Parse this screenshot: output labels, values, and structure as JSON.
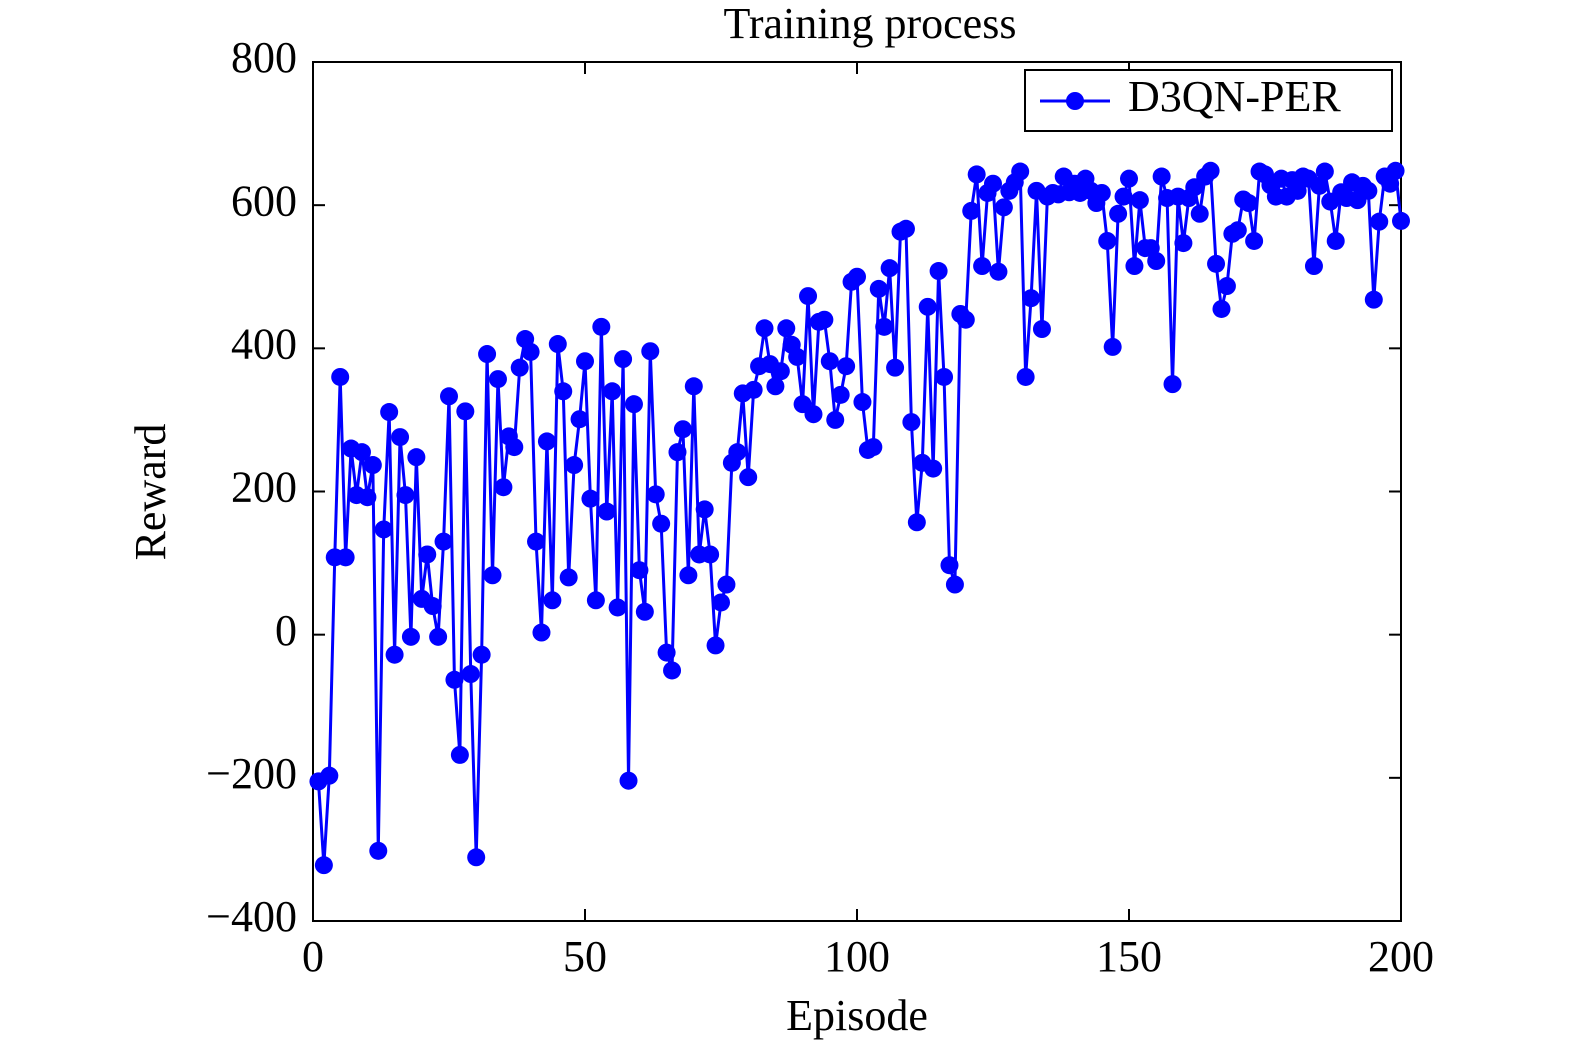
{
  "chart_data": {
    "type": "line",
    "title": "Training process",
    "xlabel": "Episode",
    "ylabel": "Reward",
    "x": [
      1,
      2,
      3,
      4,
      5,
      6,
      7,
      8,
      9,
      10,
      11,
      12,
      13,
      14,
      15,
      16,
      17,
      18,
      19,
      20,
      21,
      22,
      23,
      24,
      25,
      26,
      27,
      28,
      29,
      30,
      31,
      32,
      33,
      34,
      35,
      36,
      37,
      38,
      39,
      40,
      41,
      42,
      43,
      44,
      45,
      46,
      47,
      48,
      49,
      50,
      51,
      52,
      53,
      54,
      55,
      56,
      57,
      58,
      59,
      60,
      61,
      62,
      63,
      64,
      65,
      66,
      67,
      68,
      69,
      70,
      71,
      72,
      73,
      74,
      75,
      76,
      77,
      78,
      79,
      80,
      81,
      82,
      83,
      84,
      85,
      86,
      87,
      88,
      89,
      90,
      91,
      92,
      93,
      94,
      95,
      96,
      97,
      98,
      99,
      100,
      101,
      102,
      103,
      104,
      105,
      106,
      107,
      108,
      109,
      110,
      111,
      112,
      113,
      114,
      115,
      116,
      117,
      118,
      119,
      120,
      121,
      122,
      123,
      124,
      125,
      126,
      127,
      128,
      129,
      130,
      131,
      132,
      133,
      134,
      135,
      136,
      137,
      138,
      139,
      140,
      141,
      142,
      143,
      144,
      145,
      146,
      147,
      148,
      149,
      150,
      151,
      152,
      153,
      154,
      155,
      156,
      157,
      158,
      159,
      160,
      161,
      162,
      163,
      164,
      165,
      166,
      167,
      168,
      169,
      170,
      171,
      172,
      173,
      174,
      175,
      176,
      177,
      178,
      179,
      180,
      181,
      182,
      183,
      184,
      185,
      186,
      187,
      188,
      189,
      190,
      191,
      192,
      193,
      194,
      195,
      196,
      197,
      198,
      199,
      200
    ],
    "series": [
      {
        "name": "D3QN-PER",
        "color": "#0000ff",
        "values": [
          -205,
          -322,
          -197,
          108,
          360,
          108,
          260,
          195,
          255,
          192,
          237,
          -302,
          147,
          311,
          -28,
          276,
          195,
          -3,
          248,
          50,
          112,
          40,
          -3,
          130,
          333,
          -63,
          -168,
          312,
          -55,
          -311,
          -28,
          392,
          83,
          357,
          206,
          277,
          262,
          373,
          413,
          395,
          130,
          3,
          270,
          48,
          406,
          340,
          80,
          237,
          301,
          382,
          190,
          48,
          430,
          172,
          340,
          38,
          385,
          -204,
          322,
          90,
          32,
          396,
          196,
          155,
          -25,
          -50,
          255,
          287,
          83,
          347,
          112,
          175,
          112,
          -15,
          45,
          70,
          240,
          255,
          337,
          220,
          342,
          375,
          428,
          378,
          347,
          368,
          428,
          405,
          388,
          322,
          473,
          308,
          437,
          440,
          382,
          300,
          335,
          375,
          493,
          500,
          325,
          258,
          262,
          483,
          430,
          512,
          373,
          563,
          567,
          297,
          157,
          240,
          458,
          232,
          508,
          360,
          97,
          70,
          448,
          440,
          592,
          643,
          515,
          617,
          630,
          507,
          597,
          620,
          632,
          647,
          360,
          470,
          620,
          427,
          612,
          617,
          615,
          640,
          618,
          630,
          617,
          637,
          620,
          603,
          617,
          550,
          402,
          588,
          612,
          637,
          515,
          607,
          540,
          540,
          522,
          640,
          610,
          350,
          612,
          547,
          610,
          625,
          588,
          640,
          648,
          518,
          455,
          487,
          560,
          565,
          608,
          603,
          550,
          647,
          643,
          628,
          612,
          637,
          612,
          635,
          620,
          640,
          637,
          515,
          627,
          647,
          605,
          550,
          618,
          610,
          632,
          607,
          627,
          620,
          468,
          577,
          640,
          630,
          648,
          578
        ]
      }
    ],
    "xlim": [
      0,
      200
    ],
    "xticks": [
      0,
      50,
      100,
      150,
      200
    ],
    "ylim": [
      -400,
      800
    ],
    "yticks": [
      {
        "value": -400,
        "label": "−400"
      },
      {
        "value": -200,
        "label": "−200"
      },
      0,
      200,
      400,
      600,
      800
    ],
    "legend": "upper right"
  }
}
